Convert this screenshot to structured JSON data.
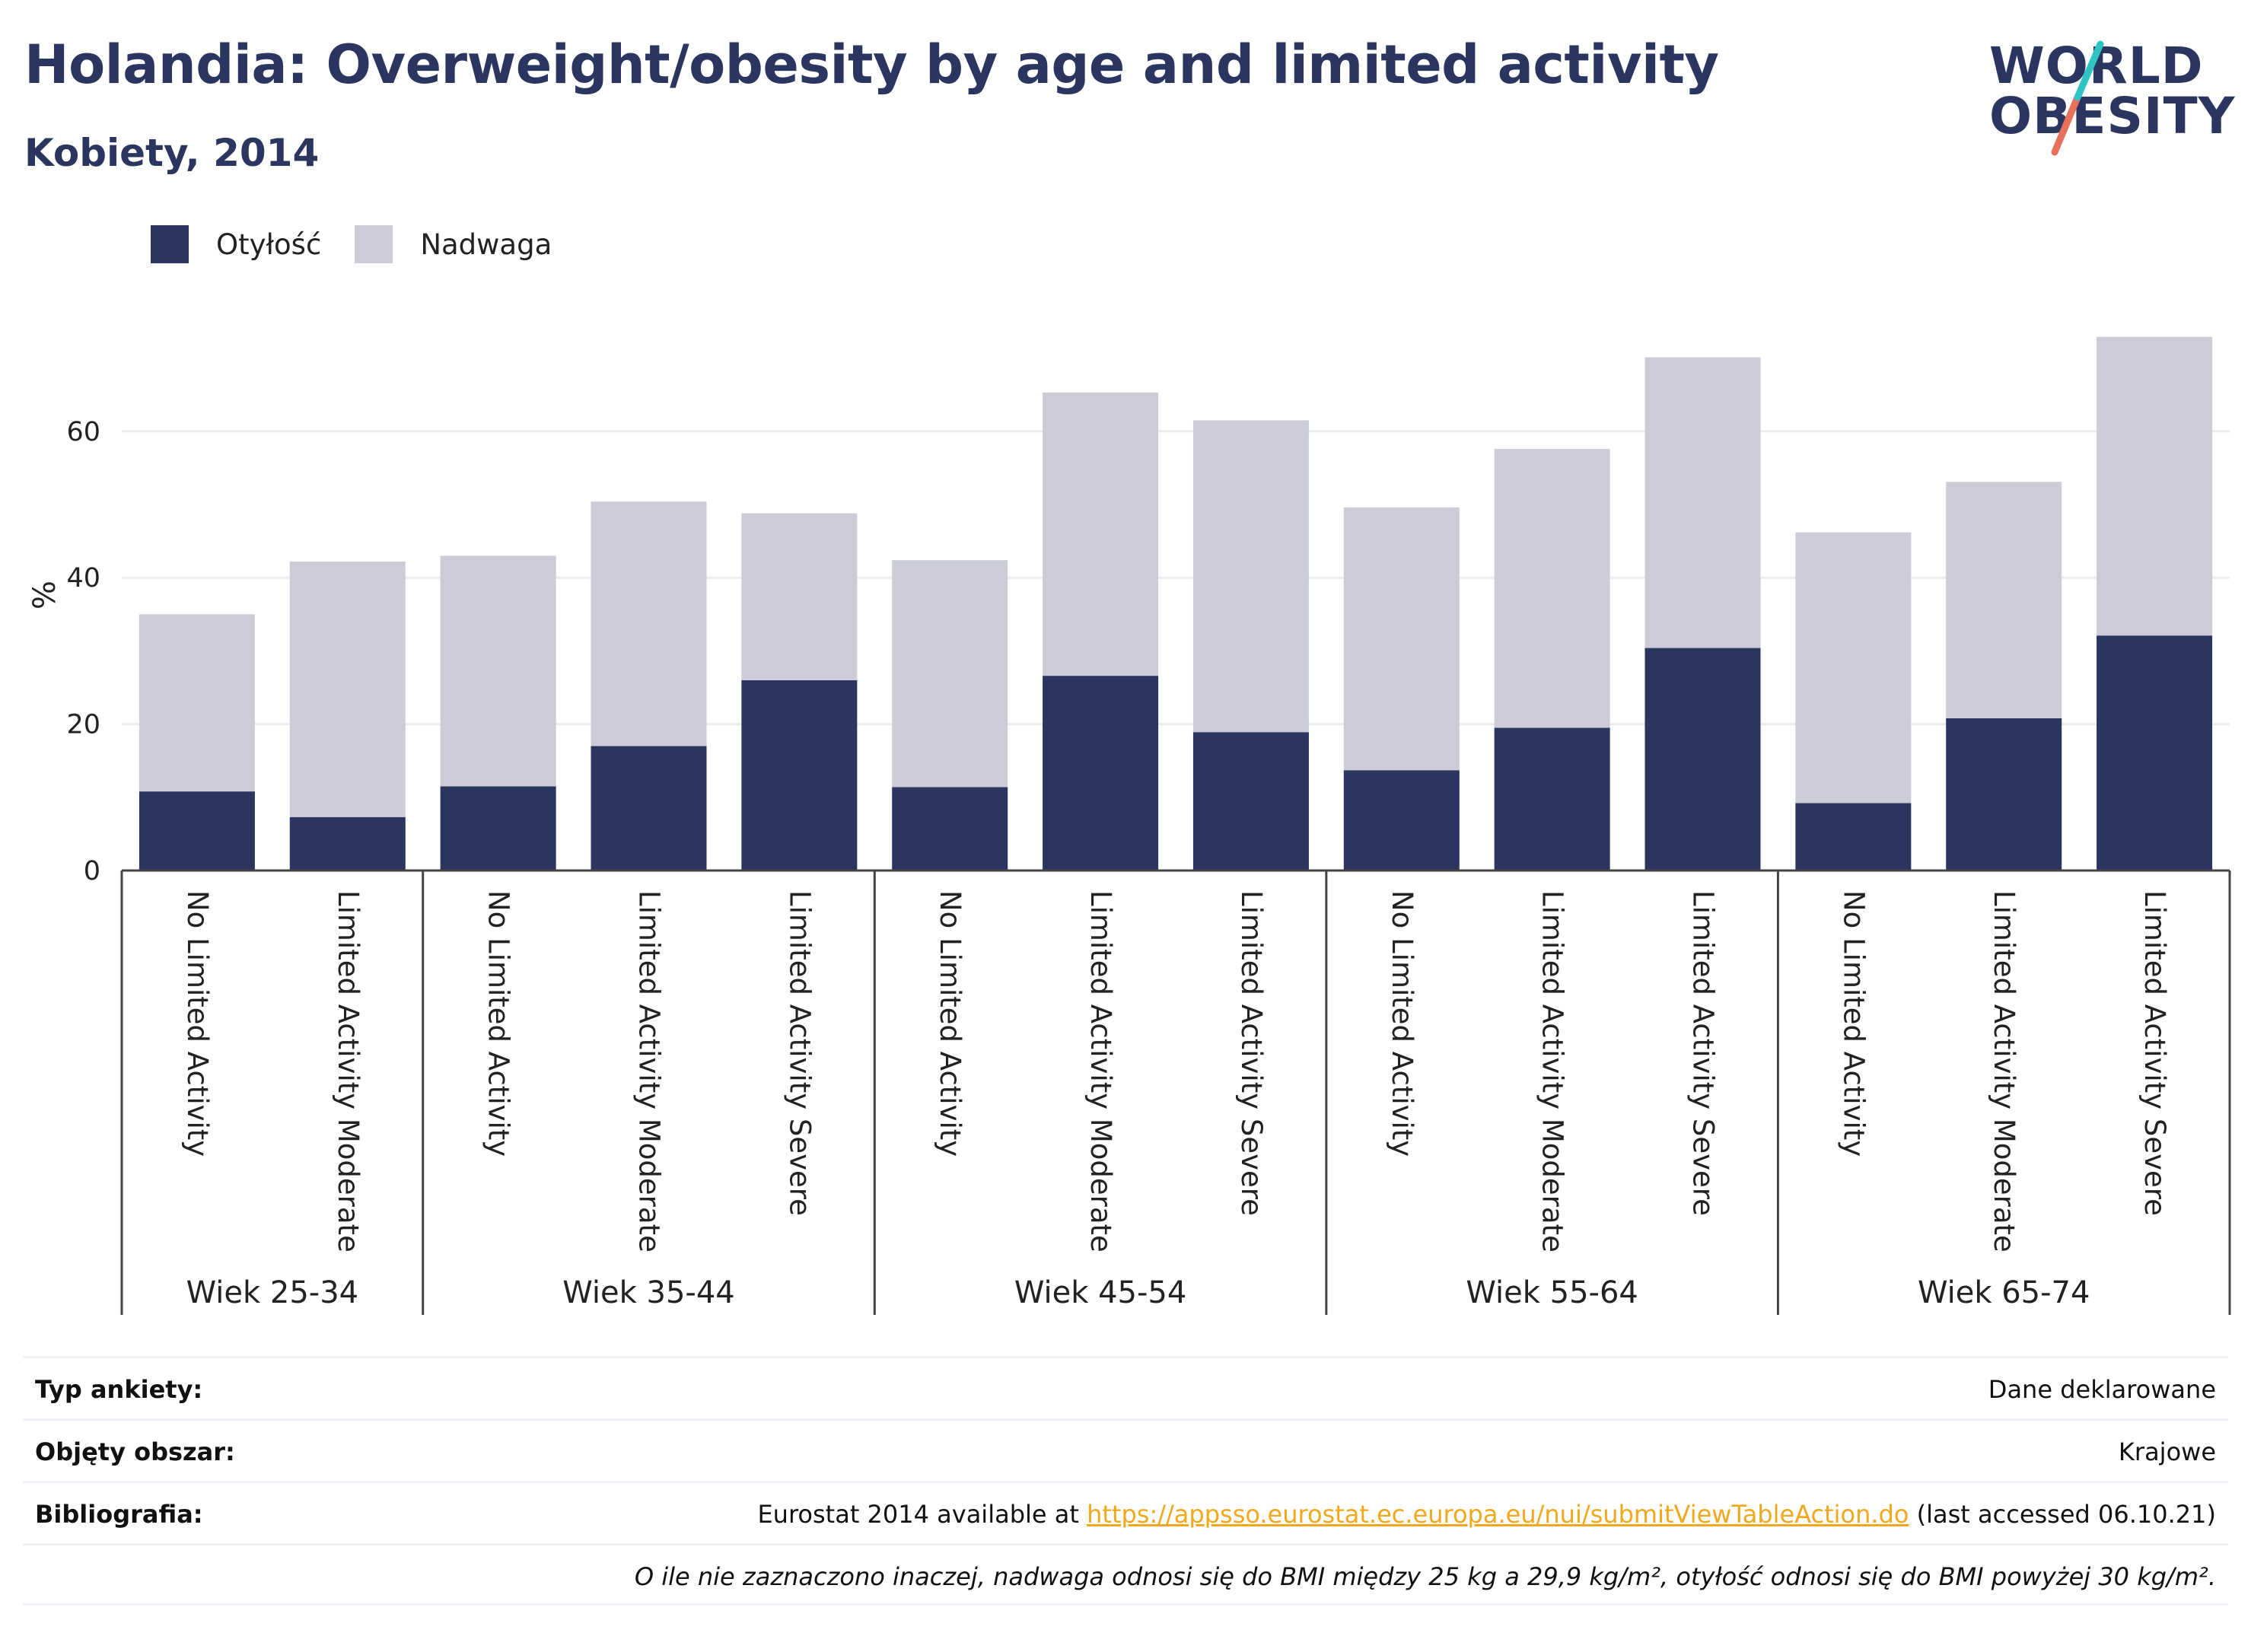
{
  "header": {
    "title": "Holandia: Overweight/obesity by age and limited activity",
    "subtitle": "Kobiety, 2014"
  },
  "logo": {
    "line1": "WORLD",
    "line2": "OBESITY"
  },
  "colors": {
    "obesity": "#2a3560",
    "overweight": "#cbccd8",
    "accent_teal": "#2ec4c4",
    "accent_coral": "#e8705a"
  },
  "legend": {
    "obesity_label": "Otyłość",
    "overweight_label": "Nadwaga"
  },
  "chart_data": {
    "type": "bar",
    "stacked": true,
    "ylabel": "%",
    "ylim": [
      0,
      75
    ],
    "yticks": [
      0,
      20,
      40,
      60
    ],
    "grid": true,
    "legend_position": "top-left",
    "groups": [
      {
        "name": "Wiek 25-34",
        "categories": [
          "No Limited Activity",
          "Limited Activity Moderate"
        ]
      },
      {
        "name": "Wiek 35-44",
        "categories": [
          "No Limited Activity",
          "Limited Activity Moderate",
          "Limited Activity Severe"
        ]
      },
      {
        "name": "Wiek 45-54",
        "categories": [
          "No Limited Activity",
          "Limited Activity Moderate",
          "Limited Activity Severe"
        ]
      },
      {
        "name": "Wiek 55-64",
        "categories": [
          "No Limited Activity",
          "Limited Activity Moderate",
          "Limited Activity Severe"
        ]
      },
      {
        "name": "Wiek 65-74",
        "categories": [
          "No Limited Activity",
          "Limited Activity Moderate",
          "Limited Activity Severe"
        ]
      }
    ],
    "series": [
      {
        "name": "Otyłość",
        "values": [
          10.8,
          7.3,
          11.5,
          17.0,
          26.0,
          11.4,
          26.6,
          18.9,
          13.7,
          19.5,
          30.4,
          9.2,
          20.8,
          32.1
        ]
      },
      {
        "name": "Nadwaga",
        "values": [
          24.2,
          34.9,
          31.5,
          33.4,
          22.8,
          31.0,
          38.7,
          42.6,
          35.9,
          38.1,
          39.7,
          37.0,
          32.3,
          40.8
        ]
      }
    ]
  },
  "info": {
    "survey_key": "Typ ankiety:",
    "survey_value": "Dane deklarowane",
    "area_key": "Objęty obszar:",
    "area_value": "Krajowe",
    "bib_key": "Bibliografia:",
    "bib_prefix": "Eurostat 2014 available at ",
    "bib_link": "https://appsso.eurostat.ec.europa.eu/nui/submitViewTableAction.do",
    "bib_suffix": " (last accessed 06.10.21)",
    "note": "O ile nie zaznaczono inaczej, nadwaga odnosi się do BMI między 25 kg a 29,9 kg/m², otyłość odnosi się do BMI powyżej 30 kg/m²."
  }
}
